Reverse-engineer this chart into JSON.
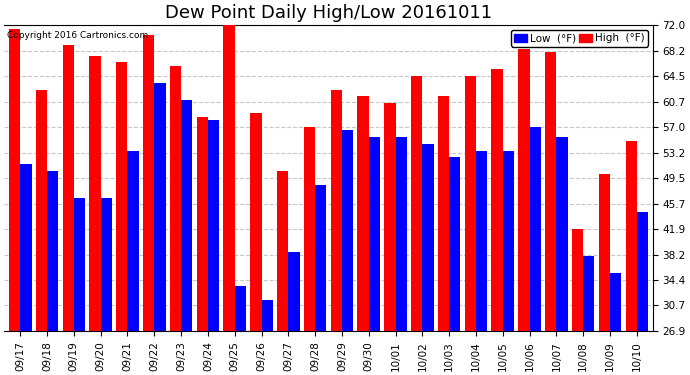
{
  "title": "Dew Point Daily High/Low 20161011",
  "copyright": "Copyright 2016 Cartronics.com",
  "categories": [
    "09/17",
    "09/18",
    "09/19",
    "09/20",
    "09/21",
    "09/22",
    "09/23",
    "09/24",
    "09/25",
    "09/26",
    "09/27",
    "09/28",
    "09/29",
    "09/30",
    "10/01",
    "10/02",
    "10/03",
    "10/04",
    "10/05",
    "10/06",
    "10/07",
    "10/08",
    "10/09",
    "10/10"
  ],
  "high_values": [
    71.5,
    62.5,
    69.0,
    67.5,
    66.5,
    70.5,
    66.0,
    58.5,
    72.0,
    59.0,
    50.5,
    57.0,
    62.5,
    61.5,
    60.5,
    64.5,
    61.5,
    64.5,
    65.5,
    68.5,
    68.0,
    42.0,
    50.0,
    55.0
  ],
  "low_values": [
    51.5,
    50.5,
    46.5,
    46.5,
    53.5,
    63.5,
    61.0,
    58.0,
    33.5,
    31.5,
    38.5,
    48.5,
    56.5,
    55.5,
    55.5,
    54.5,
    52.5,
    53.5,
    53.5,
    57.0,
    55.5,
    38.0,
    35.5,
    44.5
  ],
  "high_color": "#ff0000",
  "low_color": "#0000ff",
  "bg_color": "#ffffff",
  "grid_color": "#c8c8c8",
  "ylim_min": 26.9,
  "ylim_max": 72.0,
  "yticks": [
    26.9,
    30.7,
    34.4,
    38.2,
    41.9,
    45.7,
    49.5,
    53.2,
    57.0,
    60.7,
    64.5,
    68.2,
    72.0
  ],
  "bar_width": 0.42,
  "title_fontsize": 13,
  "tick_fontsize": 7.5,
  "legend_low_label": "Low  (°F)",
  "legend_high_label": "High  (°F)"
}
